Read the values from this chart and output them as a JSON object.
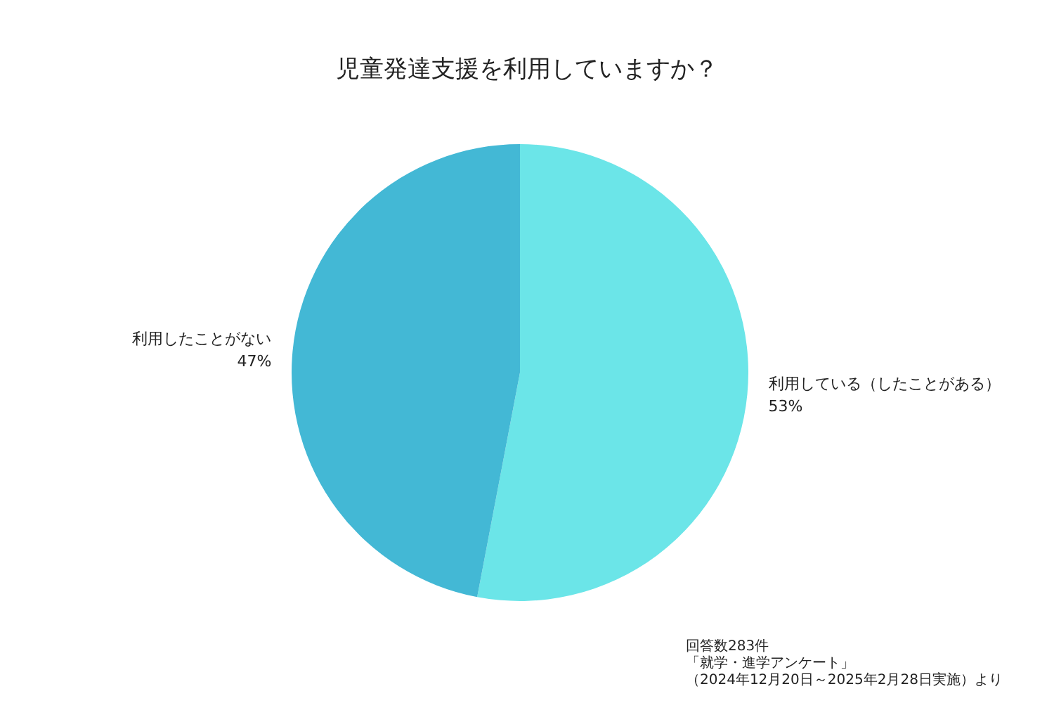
{
  "chart_data": {
    "type": "pie",
    "title": "児童発達支援を利用していますか？",
    "categories": [
      "利用している（したことがある）",
      "利用したことがない"
    ],
    "values": [
      53,
      47
    ],
    "value_labels": [
      "53%",
      "47%"
    ],
    "colors": [
      "#6be5e8",
      "#43b8d5"
    ],
    "legend": false,
    "annotations": [
      "回答数283件",
      "「就学・進学アンケート」",
      "（2024年12月20日～2025年2月28日実施）より"
    ]
  }
}
